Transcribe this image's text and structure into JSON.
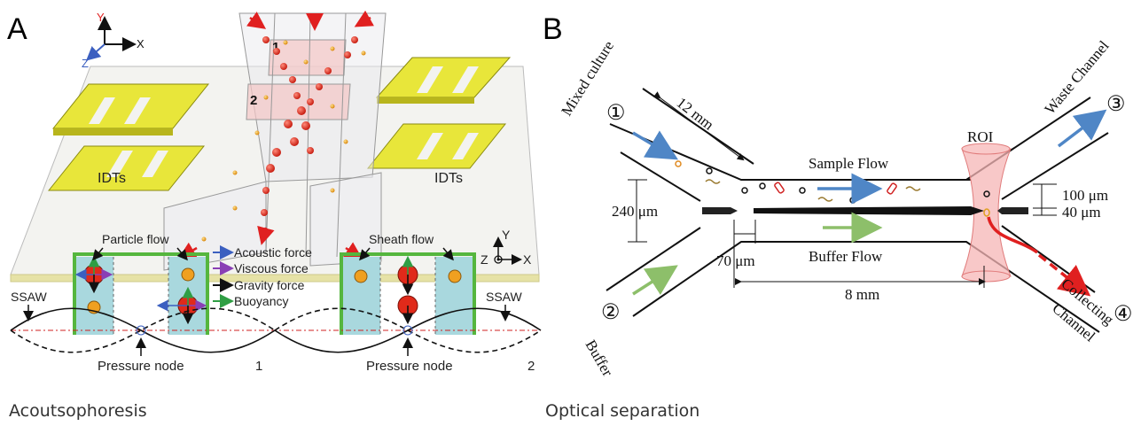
{
  "panel_a": {
    "letter": "A",
    "axis_y": "Y",
    "axis_x": "X",
    "axis_z": "Z",
    "zone_1": "1",
    "zone_2": "2",
    "idt_left": "IDTs",
    "idt_right": "IDTs",
    "particle_flow": "Particle flow",
    "sheath_flow": "Sheath flow",
    "legend": [
      "Acoustic force",
      "Viscous force",
      "Gravity force",
      "Buoyancy"
    ],
    "legend_colors": [
      "#3b5fc0",
      "#8a3fb5",
      "#111111",
      "#2f9e44"
    ],
    "ssaw_left": "SSAW",
    "ssaw_right": "SSAW",
    "pressure_node_left": "Pressure node",
    "pressure_node_right": "Pressure node",
    "case_1": "1",
    "case_2": "2",
    "cs_axis_y": "Y",
    "cs_axis_z": "Z",
    "cs_axis_x": "X",
    "caption": "Acoutsophoresis"
  },
  "panel_b": {
    "letter": "B",
    "port_1": "①",
    "port_2": "②",
    "port_3": "③",
    "port_4": "④",
    "mixed_culture": "Mixed culture",
    "buffer": "Buffer",
    "waste_channel": "Waste Channel",
    "collecting": "Collecting",
    "channel": "Channel",
    "dim_12mm": "12 mm",
    "dim_240um": "240 μm",
    "dim_70um": "70 μm",
    "dim_8mm": "8 mm",
    "dim_100um": "100 μm",
    "dim_40um": "40 μm",
    "sample_flow": "Sample Flow",
    "buffer_flow": "Buffer Flow",
    "roi": "ROI",
    "caption": "Optical separation"
  }
}
